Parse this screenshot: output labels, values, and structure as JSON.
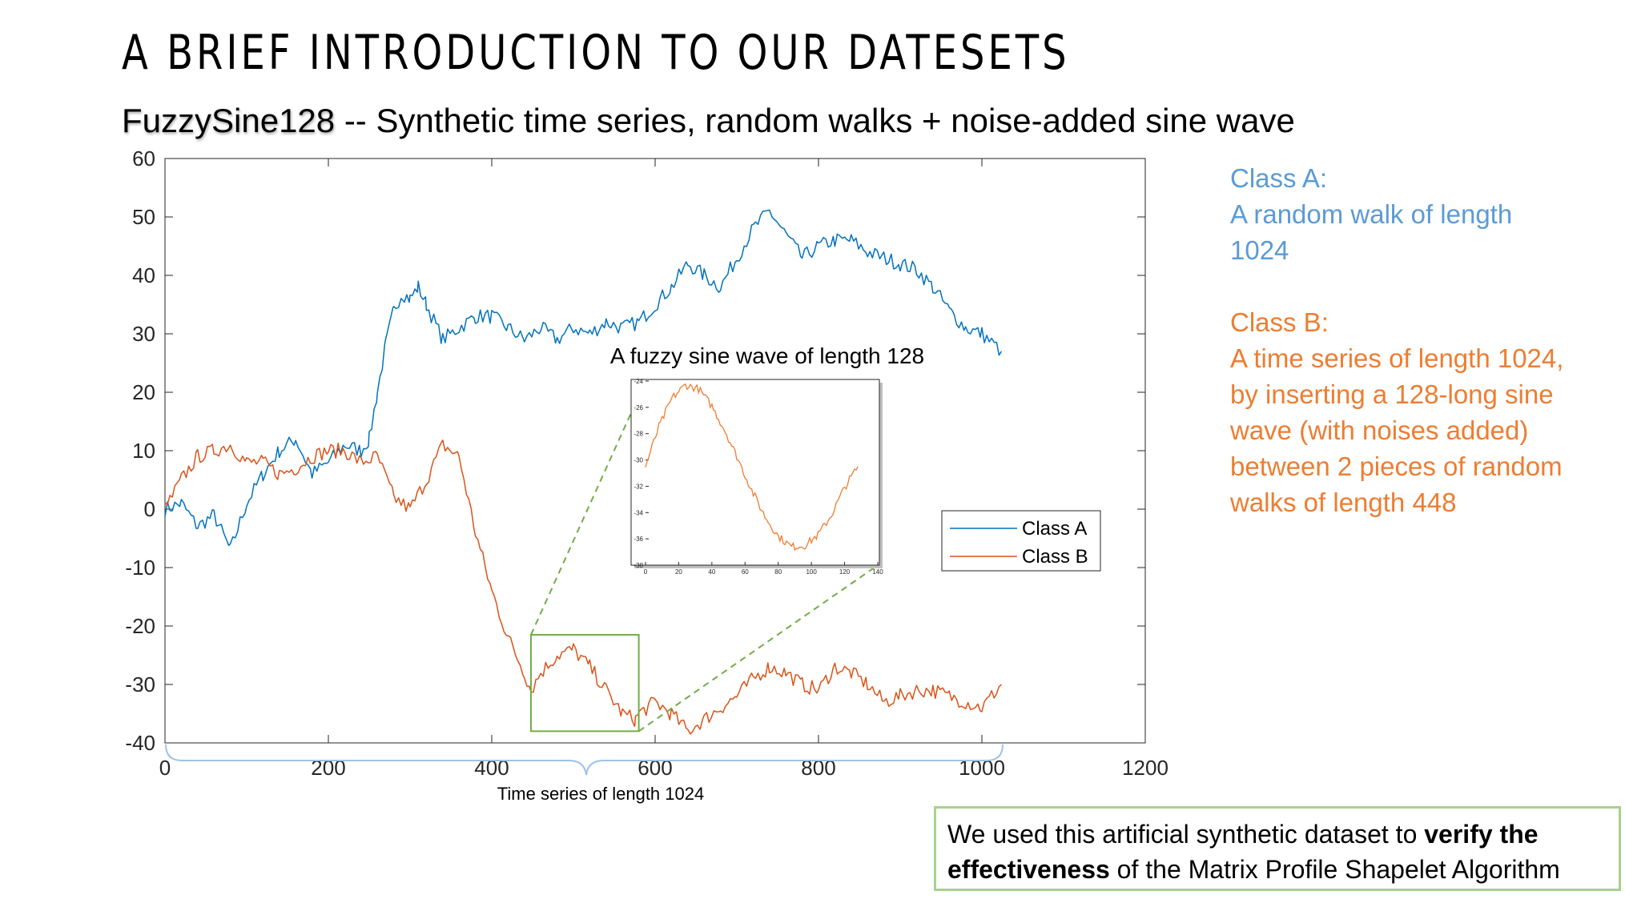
{
  "slide": {
    "title": "A BRIEF INTRODUCTION TO OUR DATESETS",
    "subtitle_dataset": "FuzzySine128",
    "subtitle_rest": " -- Synthetic time series, random walks + noise-added sine wave",
    "inset_caption": "A fuzzy sine wave of length 128",
    "brace_label": "Time series of length 1024",
    "classA_heading": "Class A:",
    "classA_desc": "A random walk of length 1024",
    "classB_heading": "Class B:",
    "classB_desc": "A time series of length 1024, by inserting a 128-long sine wave (with noises added) between 2 pieces of random walks of length 448",
    "note_part1": "We used this artificial synthetic dataset to ",
    "note_bold1": "verify the effectiveness",
    "note_part2": " of the Matrix Profile Shapelet Algorithm"
  },
  "colors": {
    "classA": "#0072bd",
    "classB": "#d95319",
    "classA_text": "#5b9bd5",
    "classB_text": "#ed7d31",
    "highlight_box": "#70ad47",
    "note_border": "#a9d18e"
  },
  "chart_data": [
    {
      "type": "line",
      "xlim": [
        0,
        1200
      ],
      "ylim": [
        -40,
        60
      ],
      "xticks": [
        0,
        200,
        400,
        600,
        800,
        1000,
        1200
      ],
      "yticks": [
        -40,
        -30,
        -20,
        -10,
        0,
        10,
        20,
        30,
        40,
        50,
        60
      ],
      "legend_position": "right-middle",
      "highlight_region": {
        "x": [
          448,
          580
        ],
        "y": [
          -38,
          -21.5
        ]
      },
      "series": [
        {
          "name": "Class A",
          "color": "#0072bd",
          "x": [
            0,
            20,
            40,
            60,
            80,
            100,
            120,
            140,
            160,
            180,
            200,
            220,
            240,
            250,
            260,
            270,
            280,
            290,
            300,
            310,
            320,
            340,
            360,
            380,
            400,
            420,
            440,
            460,
            480,
            500,
            520,
            540,
            560,
            580,
            600,
            620,
            640,
            660,
            680,
            700,
            720,
            740,
            760,
            780,
            800,
            820,
            840,
            860,
            880,
            900,
            920,
            940,
            960,
            980,
            1000,
            1024
          ],
          "y": [
            0,
            1,
            -3,
            -1,
            -7,
            1,
            6,
            10,
            12,
            6,
            8,
            11,
            10,
            12,
            20,
            28,
            34,
            37,
            36,
            38,
            35,
            29,
            31,
            33,
            33,
            31,
            29,
            31,
            29,
            31,
            30,
            32,
            31,
            32,
            35,
            38,
            42,
            40,
            38,
            43,
            48,
            51,
            47,
            43,
            45,
            46,
            46,
            44,
            43,
            42,
            41,
            38,
            34,
            31,
            30,
            27
          ]
        },
        {
          "name": "Class B",
          "color": "#d95319",
          "x": [
            0,
            20,
            40,
            60,
            80,
            100,
            120,
            140,
            160,
            180,
            200,
            220,
            240,
            260,
            280,
            300,
            320,
            340,
            360,
            380,
            400,
            420,
            440,
            448,
            460,
            480,
            500,
            520,
            540,
            560,
            576,
            580,
            600,
            620,
            640,
            660,
            680,
            700,
            720,
            740,
            760,
            780,
            800,
            820,
            840,
            860,
            880,
            900,
            920,
            940,
            960,
            980,
            1000,
            1024
          ],
          "y": [
            0,
            5,
            9,
            10,
            11,
            8,
            8,
            6,
            7,
            9,
            10,
            10,
            8,
            9,
            2,
            0,
            5,
            11,
            9,
            -4,
            -14,
            -22,
            -28,
            -31,
            -28,
            -25,
            -24,
            -27,
            -31,
            -35,
            -36,
            -35,
            -33,
            -35,
            -38,
            -36,
            -34,
            -32,
            -29,
            -27,
            -28,
            -30,
            -31,
            -27,
            -28,
            -30,
            -33,
            -32,
            -31,
            -31,
            -32,
            -33,
            -34,
            -30
          ]
        }
      ]
    },
    {
      "type": "line",
      "title": "A fuzzy sine wave of length 128",
      "xlim": [
        0,
        140
      ],
      "ylim": [
        -38,
        -24
      ],
      "xticks": [
        0,
        20,
        40,
        60,
        80,
        100,
        120,
        140
      ],
      "yticks": [
        -38,
        -36,
        -34,
        -32,
        -30,
        -28,
        -26,
        -24
      ],
      "series": [
        {
          "color": "#ed7d31",
          "x": [
            0,
            8,
            16,
            24,
            32,
            40,
            48,
            56,
            64,
            72,
            80,
            88,
            96,
            104,
            112,
            120,
            128
          ],
          "y": [
            -30.5,
            -27.5,
            -25.3,
            -24.3,
            -24.6,
            -25.9,
            -27.8,
            -30.0,
            -32.3,
            -34.3,
            -35.8,
            -36.6,
            -36.5,
            -35.7,
            -34.2,
            -32.1,
            -30.5
          ]
        }
      ]
    }
  ]
}
